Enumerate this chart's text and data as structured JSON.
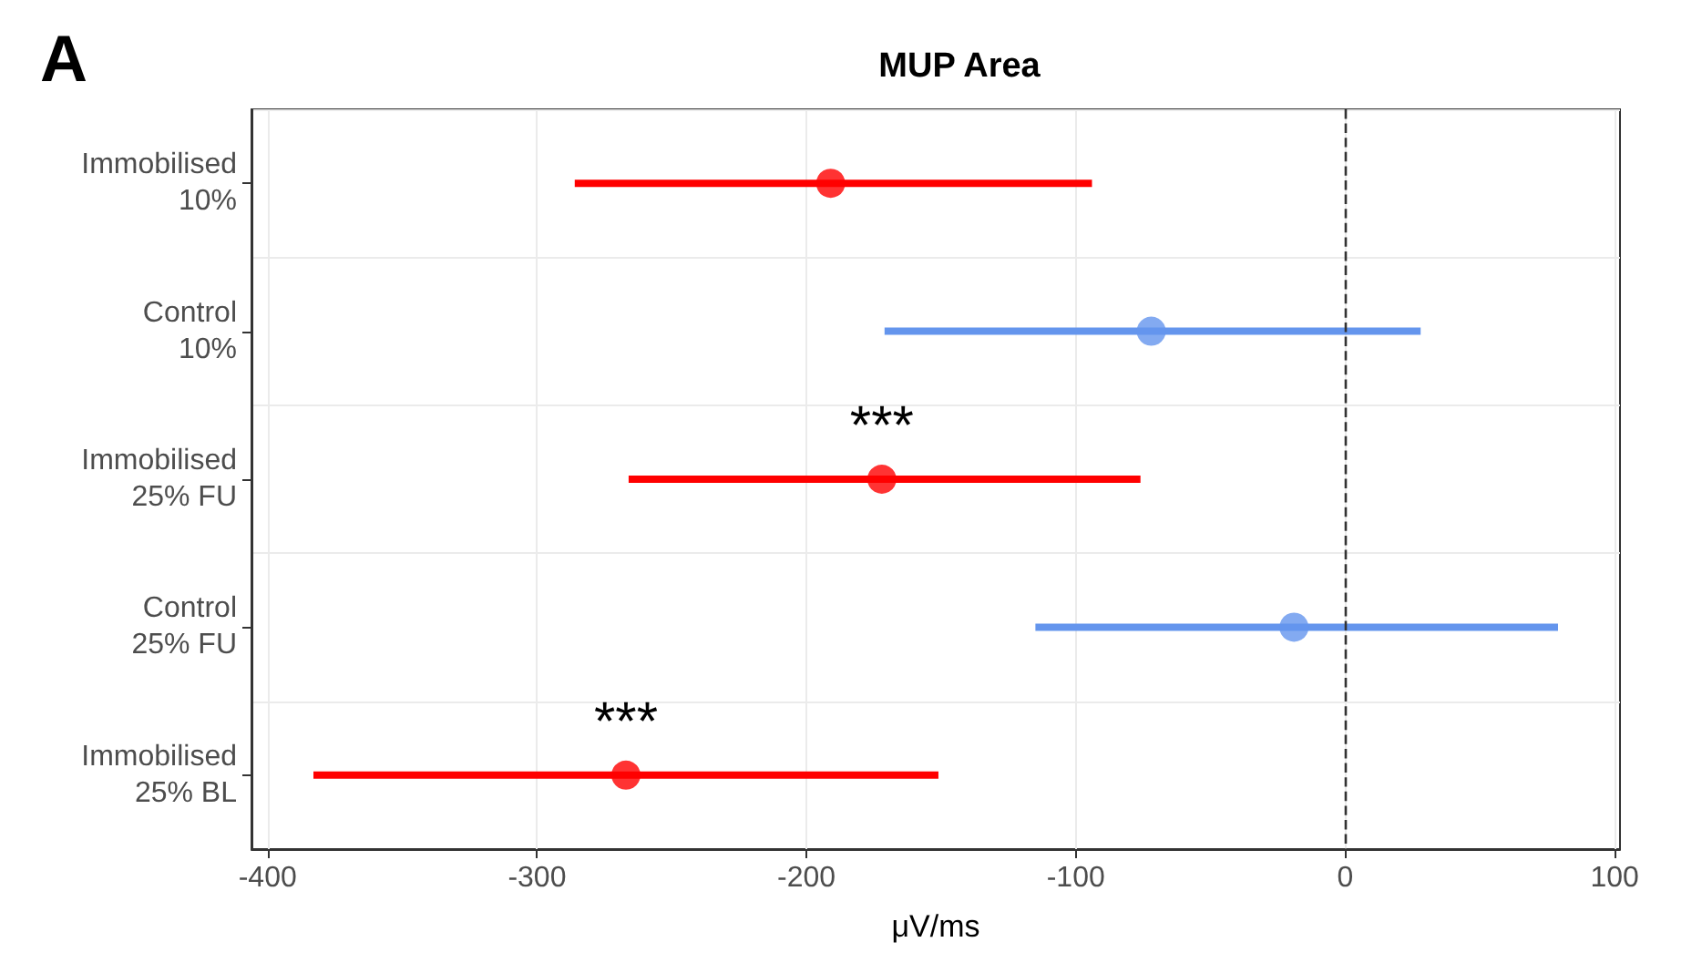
{
  "chart_data": {
    "type": "scatter",
    "orientation": "horizontal",
    "title": "MUP Area",
    "xlabel": "μV/ms",
    "categories": [
      "Immobilised\n10%",
      "Control\n10%",
      "Immobilised\n25% FU",
      "Control\n25% FU",
      "Immobilised\n25% BL"
    ],
    "series": [
      {
        "color": "#ff0000",
        "values": [
          -191,
          null,
          -172,
          null,
          -267
        ],
        "errors": [
          [
            -286,
            -94
          ],
          null,
          [
            -266,
            -76
          ],
          null,
          [
            -383,
            -151
          ]
        ]
      },
      {
        "color": "#6495ed",
        "values": [
          null,
          -72,
          null,
          -19,
          null
        ],
        "errors": [
          null,
          [
            -171,
            28
          ],
          null,
          [
            -115,
            79
          ],
          null
        ]
      }
    ],
    "xlim": [
      -406,
      102
    ],
    "xticks": [
      -400,
      -300,
      -200,
      -100,
      0,
      100
    ],
    "ref_lines": [
      {
        "axis": "x",
        "value": 0,
        "color": "#333333",
        "line_style": "dashed"
      }
    ],
    "annotations": [
      "A",
      {
        "text": "***",
        "x": -172,
        "y": "Immobilised\n25% FU"
      },
      {
        "text": "***",
        "x": -267,
        "y": "Immobilised\n25% BL"
      }
    ],
    "grid": true,
    "marker": "circle"
  }
}
